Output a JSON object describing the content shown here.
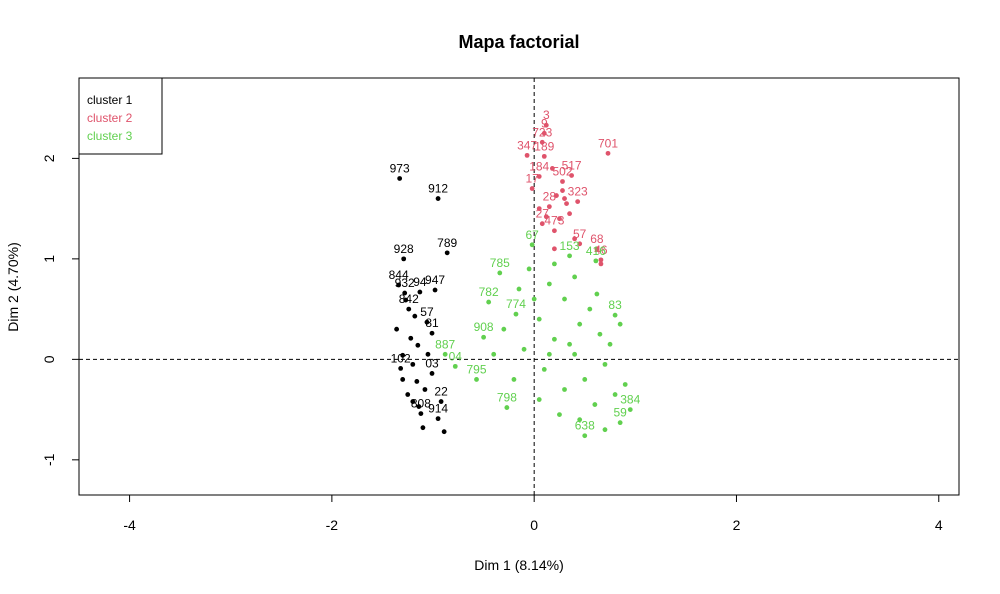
{
  "chart_data": {
    "type": "scatter",
    "title": "Mapa factorial",
    "xlabel": "Dim 1 (8.14%)",
    "ylabel": "Dim 2 (4.70%)",
    "xlim": [
      -4.5,
      4.2
    ],
    "ylim": [
      -1.35,
      2.8
    ],
    "xticks": [
      -4,
      -2,
      0,
      2,
      4
    ],
    "yticks": [
      -1,
      0,
      1,
      2
    ],
    "reference_lines": {
      "x": 0,
      "y": 0,
      "style": "dashed"
    },
    "legend": {
      "position": "top-left",
      "entries": [
        "cluster 1",
        "cluster 2",
        "cluster 3"
      ]
    },
    "colors": {
      "cluster 1": "#000000",
      "cluster 2": "#DF536B",
      "cluster 3": "#61D04F"
    },
    "series": [
      {
        "name": "cluster 1",
        "points": [
          {
            "x": -1.33,
            "y": 1.8,
            "label": "973"
          },
          {
            "x": -0.95,
            "y": 1.6,
            "label": "912"
          },
          {
            "x": -0.86,
            "y": 1.06,
            "label": "789"
          },
          {
            "x": -1.29,
            "y": 1.0,
            "label": "928"
          },
          {
            "x": -1.34,
            "y": 0.74,
            "label": "844"
          },
          {
            "x": -0.98,
            "y": 0.69,
            "label": "947"
          },
          {
            "x": -1.13,
            "y": 0.67,
            "label": "94"
          },
          {
            "x": -1.28,
            "y": 0.66,
            "label": "932"
          },
          {
            "x": -1.24,
            "y": 0.5,
            "label": "842"
          },
          {
            "x": -1.06,
            "y": 0.37,
            "label": "57"
          },
          {
            "x": -1.01,
            "y": 0.26,
            "label": "81"
          },
          {
            "x": -1.36,
            "y": 0.3,
            "label": ""
          },
          {
            "x": -1.15,
            "y": 0.14,
            "label": ""
          },
          {
            "x": -1.3,
            "y": 0.04,
            "label": ""
          },
          {
            "x": -1.32,
            "y": -0.09,
            "label": "102"
          },
          {
            "x": -1.01,
            "y": -0.14,
            "label": "03"
          },
          {
            "x": -1.16,
            "y": -0.22,
            "label": ""
          },
          {
            "x": -0.92,
            "y": -0.42,
            "label": "22"
          },
          {
            "x": -1.2,
            "y": -0.42,
            "label": ""
          },
          {
            "x": -0.95,
            "y": -0.59,
            "label": "914"
          },
          {
            "x": -1.12,
            "y": -0.54,
            "label": "808"
          },
          {
            "x": -0.89,
            "y": -0.72,
            "label": ""
          },
          {
            "x": -1.1,
            "y": -0.68,
            "label": ""
          },
          {
            "x": -1.25,
            "y": -0.35,
            "label": ""
          },
          {
            "x": -1.05,
            "y": 0.05,
            "label": ""
          },
          {
            "x": -1.18,
            "y": 0.43,
            "label": ""
          },
          {
            "x": -1.27,
            "y": 0.59,
            "label": ""
          },
          {
            "x": -1.2,
            "y": -0.05,
            "label": ""
          },
          {
            "x": -1.08,
            "y": -0.3,
            "label": ""
          },
          {
            "x": -1.3,
            "y": -0.2,
            "label": ""
          },
          {
            "x": -1.22,
            "y": 0.21,
            "label": ""
          },
          {
            "x": -1.14,
            "y": -0.47,
            "label": ""
          }
        ]
      },
      {
        "name": "cluster 2",
        "points": [
          {
            "x": 0.12,
            "y": 2.33,
            "label": "3"
          },
          {
            "x": 0.1,
            "y": 2.25,
            "label": "9"
          },
          {
            "x": 0.08,
            "y": 2.16,
            "label": "723"
          },
          {
            "x": -0.07,
            "y": 2.03,
            "label": "347"
          },
          {
            "x": 0.1,
            "y": 2.02,
            "label": "189"
          },
          {
            "x": 0.73,
            "y": 2.05,
            "label": "701"
          },
          {
            "x": 0.37,
            "y": 1.83,
            "label": "517"
          },
          {
            "x": 0.05,
            "y": 1.82,
            "label": "184"
          },
          {
            "x": 0.28,
            "y": 1.77,
            "label": "502"
          },
          {
            "x": -0.02,
            "y": 1.7,
            "label": "17"
          },
          {
            "x": 0.43,
            "y": 1.57,
            "label": "323"
          },
          {
            "x": 0.15,
            "y": 1.52,
            "label": "28"
          },
          {
            "x": 0.35,
            "y": 1.45,
            "label": ""
          },
          {
            "x": 0.08,
            "y": 1.35,
            "label": "27"
          },
          {
            "x": 0.2,
            "y": 1.28,
            "label": "473"
          },
          {
            "x": 0.45,
            "y": 1.15,
            "label": "57"
          },
          {
            "x": 0.62,
            "y": 1.1,
            "label": "68"
          },
          {
            "x": 0.66,
            "y": 0.99,
            "label": "46"
          },
          {
            "x": 0.66,
            "y": 0.95,
            "label": ""
          },
          {
            "x": 0.22,
            "y": 1.63,
            "label": ""
          },
          {
            "x": 0.3,
            "y": 1.6,
            "label": ""
          },
          {
            "x": 0.05,
            "y": 1.5,
            "label": ""
          },
          {
            "x": 0.25,
            "y": 1.4,
            "label": ""
          },
          {
            "x": 0.18,
            "y": 1.9,
            "label": ""
          },
          {
            "x": 0.32,
            "y": 1.55,
            "label": ""
          },
          {
            "x": 0.12,
            "y": 1.42,
            "label": ""
          },
          {
            "x": 0.28,
            "y": 1.68,
            "label": ""
          },
          {
            "x": 0.4,
            "y": 1.2,
            "label": ""
          },
          {
            "x": 0.2,
            "y": 1.1,
            "label": ""
          }
        ]
      },
      {
        "name": "cluster 3",
        "points": [
          {
            "x": -0.02,
            "y": 1.14,
            "label": "67"
          },
          {
            "x": -0.34,
            "y": 0.86,
            "label": "785"
          },
          {
            "x": -0.45,
            "y": 0.57,
            "label": "782"
          },
          {
            "x": -0.18,
            "y": 0.45,
            "label": "774"
          },
          {
            "x": -0.5,
            "y": 0.22,
            "label": "908"
          },
          {
            "x": -0.88,
            "y": 0.05,
            "label": "887"
          },
          {
            "x": -0.78,
            "y": -0.07,
            "label": "04"
          },
          {
            "x": -0.57,
            "y": -0.2,
            "label": "795"
          },
          {
            "x": -0.27,
            "y": -0.48,
            "label": "798"
          },
          {
            "x": 0.35,
            "y": 1.03,
            "label": "153"
          },
          {
            "x": 0.61,
            "y": 0.98,
            "label": "416"
          },
          {
            "x": 0.8,
            "y": 0.44,
            "label": "83"
          },
          {
            "x": 0.95,
            "y": -0.5,
            "label": "384"
          },
          {
            "x": 0.5,
            "y": -0.76,
            "label": "638"
          },
          {
            "x": 0.85,
            "y": -0.63,
            "label": "59"
          },
          {
            "x": -0.05,
            "y": 0.9,
            "label": ""
          },
          {
            "x": 0.15,
            "y": 0.75,
            "label": ""
          },
          {
            "x": 0.3,
            "y": 0.6,
            "label": ""
          },
          {
            "x": 0.05,
            "y": 0.4,
            "label": ""
          },
          {
            "x": 0.45,
            "y": 0.35,
            "label": ""
          },
          {
            "x": 0.65,
            "y": 0.25,
            "label": ""
          },
          {
            "x": 0.2,
            "y": 0.2,
            "label": ""
          },
          {
            "x": -0.1,
            "y": 0.1,
            "label": ""
          },
          {
            "x": 0.4,
            "y": 0.05,
            "label": ""
          },
          {
            "x": 0.7,
            "y": -0.05,
            "label": ""
          },
          {
            "x": 0.1,
            "y": -0.1,
            "label": ""
          },
          {
            "x": 0.5,
            "y": -0.2,
            "label": ""
          },
          {
            "x": 0.3,
            "y": -0.3,
            "label": ""
          },
          {
            "x": 0.8,
            "y": -0.35,
            "label": ""
          },
          {
            "x": 0.05,
            "y": -0.4,
            "label": ""
          },
          {
            "x": 0.6,
            "y": -0.45,
            "label": ""
          },
          {
            "x": 0.25,
            "y": -0.55,
            "label": ""
          },
          {
            "x": 0.9,
            "y": -0.25,
            "label": ""
          },
          {
            "x": -0.3,
            "y": 0.3,
            "label": ""
          },
          {
            "x": 0.55,
            "y": 0.5,
            "label": ""
          },
          {
            "x": 0.75,
            "y": 0.15,
            "label": ""
          },
          {
            "x": 0.15,
            "y": 0.05,
            "label": ""
          },
          {
            "x": 0.35,
            "y": 0.15,
            "label": ""
          },
          {
            "x": 0.62,
            "y": 0.65,
            "label": ""
          },
          {
            "x": -0.2,
            "y": -0.2,
            "label": ""
          },
          {
            "x": 0.45,
            "y": -0.6,
            "label": ""
          },
          {
            "x": 0.0,
            "y": 0.6,
            "label": ""
          },
          {
            "x": -0.4,
            "y": 0.05,
            "label": ""
          },
          {
            "x": 0.85,
            "y": 0.35,
            "label": ""
          },
          {
            "x": 0.7,
            "y": -0.7,
            "label": ""
          },
          {
            "x": 0.2,
            "y": 0.95,
            "label": ""
          },
          {
            "x": 0.4,
            "y": 0.82,
            "label": ""
          },
          {
            "x": -0.15,
            "y": 0.7,
            "label": ""
          }
        ]
      }
    ]
  }
}
